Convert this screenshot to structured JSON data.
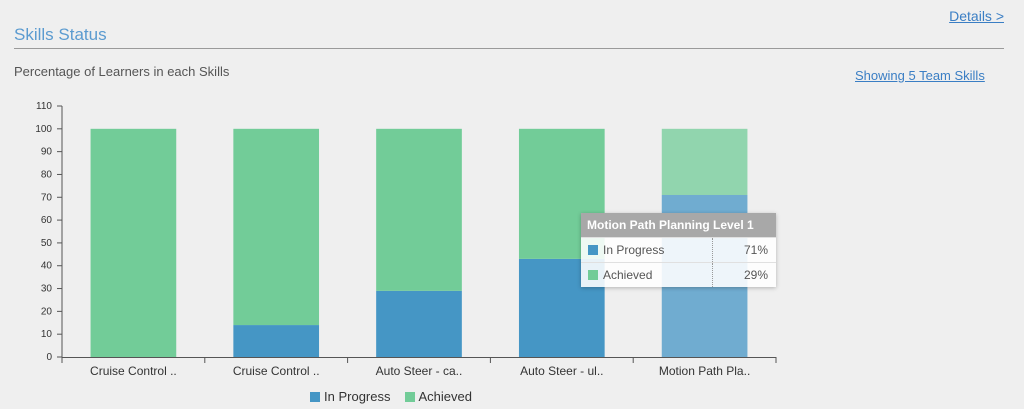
{
  "header": {
    "title": "Skills Status",
    "details_link": "Details >",
    "subtitle": "Percentage of Learners in each Skills",
    "team_link": "Showing 5 Team Skills"
  },
  "chart_data": {
    "type": "bar",
    "stacked": true,
    "categories": [
      "Cruise Control ..",
      "Cruise Control ..",
      "Auto Steer - ca..",
      "Auto Steer - ul..",
      "Motion Path Pla.."
    ],
    "series": [
      {
        "name": "In Progress",
        "color": "#4596c5",
        "values": [
          0,
          14,
          29,
          43,
          71
        ]
      },
      {
        "name": "Achieved",
        "color": "#72cc98",
        "values": [
          100,
          86,
          71,
          57,
          29
        ]
      }
    ],
    "ylim": [
      0,
      110
    ],
    "yticks": [
      "0",
      "10",
      "20",
      "30",
      "40",
      "50",
      "60",
      "70",
      "80",
      "90",
      "100",
      "110"
    ],
    "legend_position": "bottom",
    "grid": false,
    "highlighted_index": 4
  },
  "tooltip": {
    "title": "Motion Path Planning Level 1",
    "rows": [
      {
        "name": "In Progress",
        "value": "71%"
      },
      {
        "name": "Achieved",
        "value": "29%"
      }
    ]
  }
}
